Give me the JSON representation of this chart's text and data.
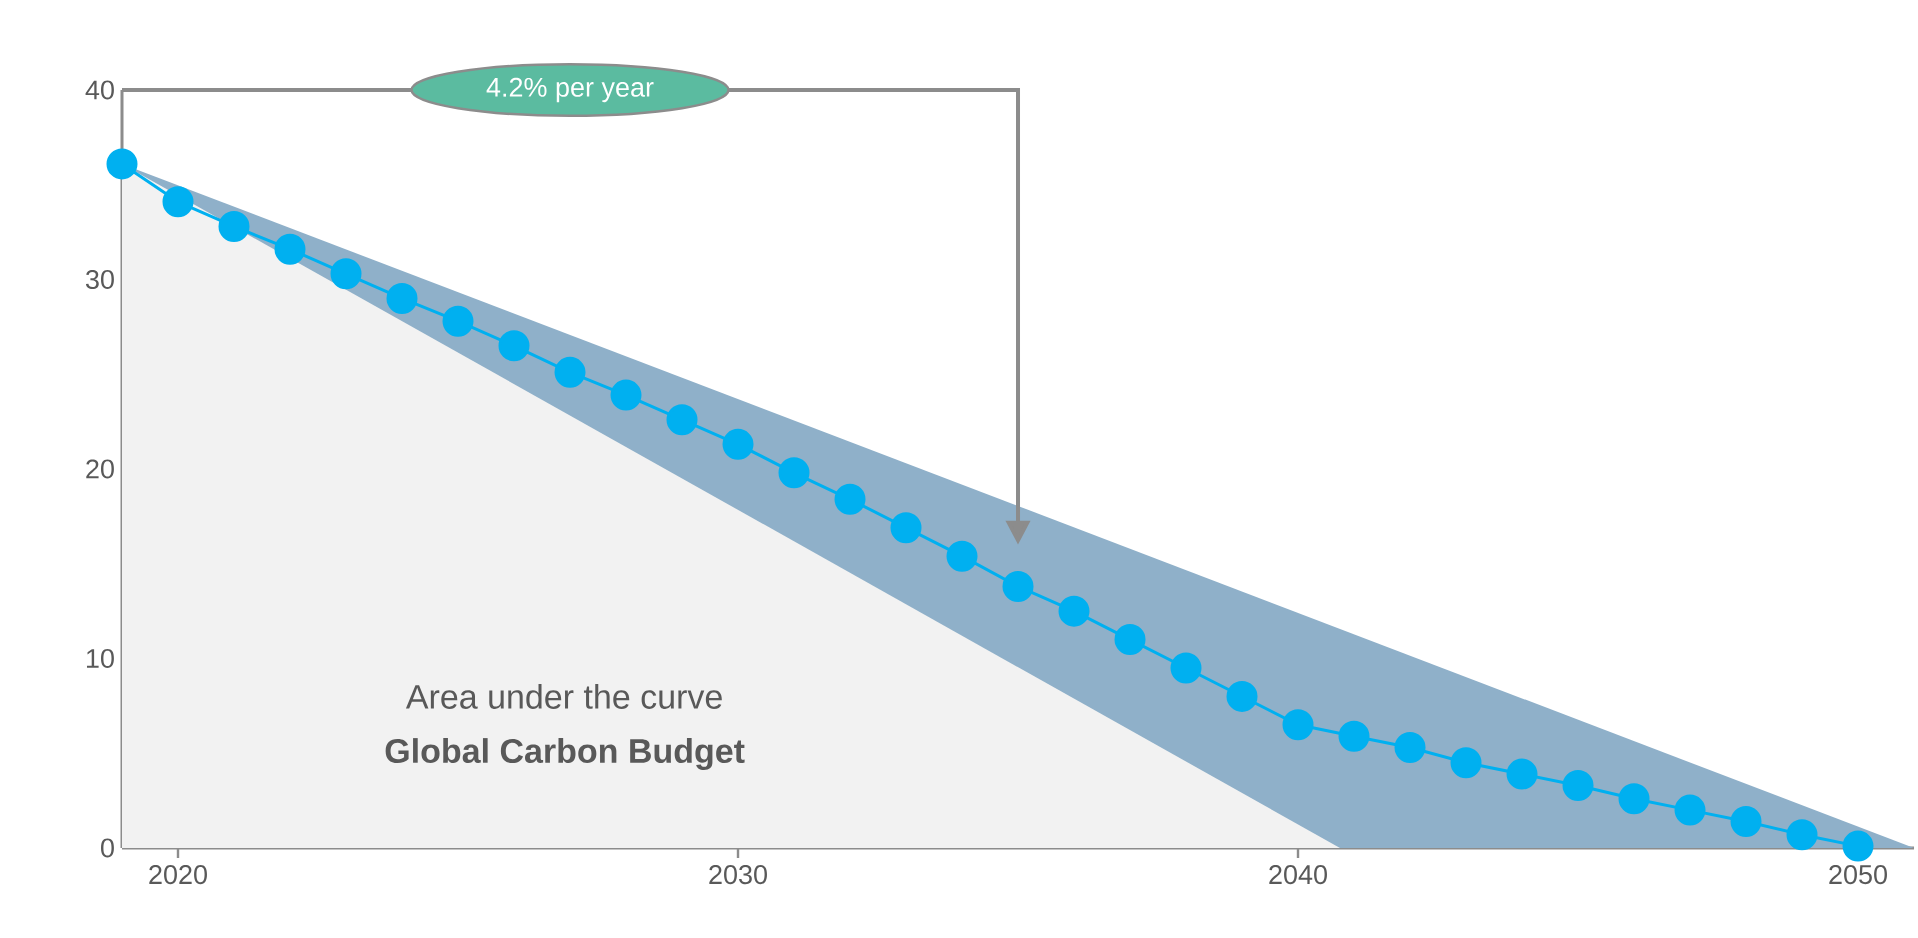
{
  "chart_data": {
    "type": "line",
    "x": [
      2019,
      2020,
      2021,
      2022,
      2023,
      2024,
      2025,
      2026,
      2027,
      2028,
      2029,
      2030,
      2031,
      2032,
      2033,
      2034,
      2035,
      2036,
      2037,
      2038,
      2039,
      2040,
      2041,
      2042,
      2043,
      2044,
      2045,
      2046,
      2047,
      2048,
      2049,
      2050
    ],
    "series": [
      {
        "type": "area",
        "color": "#8fb0c9",
        "x": [
          2019,
          2051
        ],
        "values": [
          36.1,
          0
        ]
      },
      {
        "type": "area",
        "color": "#f2f2f2",
        "x": [
          2019,
          2040.75
        ],
        "values": [
          36.1,
          0
        ]
      },
      {
        "color": "#00b0f0",
        "marker": "circle",
        "values": [
          36.1,
          34.1,
          32.8,
          31.6,
          30.3,
          29.0,
          27.8,
          26.5,
          25.1,
          23.9,
          22.6,
          21.3,
          19.8,
          18.4,
          16.9,
          15.4,
          13.8,
          12.5,
          11.0,
          9.5,
          8.0,
          6.5,
          5.9,
          5.3,
          4.5,
          3.9,
          3.3,
          2.6,
          2.0,
          1.4,
          0.7,
          0.1
        ]
      }
    ],
    "xlim": [
      2019,
      2051
    ],
    "ylim": [
      0,
      40
    ],
    "xticks": [
      2020,
      2030,
      2040,
      2050
    ],
    "yticks": [
      0,
      10,
      20,
      30,
      40
    ],
    "grid": false,
    "line_style": "solid",
    "annotations": [
      "4.2% per year",
      "Area under the curve",
      "**Global Carbon Budget**"
    ]
  }
}
